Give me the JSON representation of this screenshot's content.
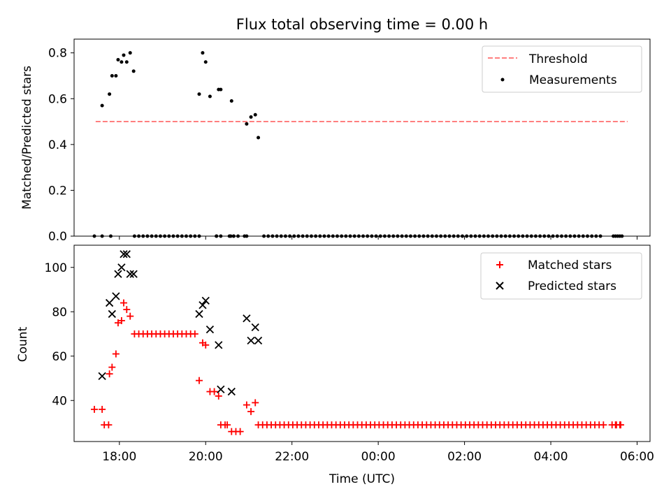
{
  "figure": {
    "title": "Flux total observing time = 0.00 h"
  },
  "chart_data": [
    {
      "type": "scatter",
      "ylabel": "Matched/Predicted stars",
      "ylim": [
        0,
        0.86
      ],
      "yticks": [
        0.0,
        0.2,
        0.4,
        0.6,
        0.8
      ],
      "ytick_labels": [
        "0.0",
        "0.2",
        "0.4",
        "0.6",
        "0.8"
      ],
      "xlim": [
        16.95,
        30.3
      ],
      "xticks": [
        18,
        20,
        22,
        24,
        26,
        28,
        30
      ],
      "threshold": {
        "name": "Threshold",
        "value": 0.5,
        "x": [
          17.45,
          29.78
        ],
        "color": "#ff7f7f"
      },
      "series": [
        {
          "name": "Measurements",
          "color": "#000000",
          "points": [
            [
              17.6,
              0.57
            ],
            [
              17.77,
              0.62
            ],
            [
              17.83,
              0.7
            ],
            [
              17.92,
              0.7
            ],
            [
              17.97,
              0.77
            ],
            [
              18.05,
              0.76
            ],
            [
              18.1,
              0.79
            ],
            [
              18.17,
              0.76
            ],
            [
              18.25,
              0.8
            ],
            [
              18.33,
              0.72
            ],
            [
              19.85,
              0.62
            ],
            [
              19.93,
              0.8
            ],
            [
              20.0,
              0.76
            ],
            [
              20.1,
              0.61
            ],
            [
              20.3,
              0.64
            ],
            [
              20.35,
              0.64
            ],
            [
              20.6,
              0.59
            ],
            [
              20.95,
              0.49
            ],
            [
              21.05,
              0.52
            ],
            [
              21.15,
              0.53
            ],
            [
              21.22,
              0.43
            ],
            [
              17.42,
              0
            ],
            [
              17.6,
              0
            ],
            [
              17.8,
              0
            ]
          ],
          "zero_run": {
            "start": 18.35,
            "end": 29.7,
            "step": 0.1,
            "skip": [
              [
                19.86,
                20.24
              ],
              [
                20.36,
                20.55
              ],
              [
                20.8,
                20.9
              ],
              [
                21.05,
                21.3
              ],
              [
                29.25,
                29.42
              ]
            ]
          },
          "zero_extra": [
            20.25,
            20.58,
            20.65,
            20.9,
            29.5,
            29.6
          ]
        }
      ],
      "legend": {
        "placement": "top-right",
        "entries": [
          "Threshold",
          "Measurements"
        ]
      }
    },
    {
      "type": "scatter",
      "xlabel": "Time (UTC)",
      "ylabel": "Count",
      "ylim": [
        21.5,
        110
      ],
      "yticks": [
        40,
        60,
        80,
        100
      ],
      "ytick_labels": [
        "40",
        "60",
        "80",
        "100"
      ],
      "xlim": [
        16.95,
        30.3
      ],
      "xticks": [
        18,
        20,
        22,
        24,
        26,
        28,
        30
      ],
      "xtick_labels": [
        "18:00",
        "20:00",
        "22:00",
        "00:00",
        "02:00",
        "04:00",
        "06:00"
      ],
      "series": [
        {
          "name": "Matched stars",
          "color": "#ff0000",
          "marker": "plus",
          "points": [
            [
              17.42,
              36
            ],
            [
              17.6,
              36
            ],
            [
              17.65,
              29
            ],
            [
              17.75,
              29
            ],
            [
              17.77,
              52
            ],
            [
              17.83,
              55
            ],
            [
              17.92,
              61
            ],
            [
              17.97,
              75
            ],
            [
              18.05,
              76
            ],
            [
              18.1,
              84
            ],
            [
              18.17,
              81
            ],
            [
              18.25,
              78
            ],
            [
              19.85,
              49
            ],
            [
              19.93,
              66
            ],
            [
              20.0,
              65
            ],
            [
              20.1,
              44
            ],
            [
              20.2,
              44
            ],
            [
              20.3,
              42
            ],
            [
              20.35,
              29
            ],
            [
              20.45,
              29
            ],
            [
              20.5,
              29
            ],
            [
              20.6,
              26
            ],
            [
              20.7,
              26
            ],
            [
              20.8,
              26
            ],
            [
              20.95,
              38
            ],
            [
              21.05,
              35
            ],
            [
              21.15,
              39
            ]
          ],
          "run": {
            "value": 70,
            "start": 18.35,
            "end": 19.75,
            "step": 0.1
          },
          "run2": {
            "value": 29,
            "start": 21.22,
            "end": 29.7,
            "step": 0.1,
            "skip": [
              [
                29.25,
                29.42
              ]
            ]
          },
          "extra29": [
            29.5,
            29.6
          ]
        },
        {
          "name": "Predicted stars",
          "color": "#000000",
          "marker": "x",
          "points": [
            [
              17.6,
              51
            ],
            [
              17.77,
              84
            ],
            [
              17.83,
              79
            ],
            [
              17.92,
              87
            ],
            [
              17.97,
              97
            ],
            [
              18.05,
              100
            ],
            [
              18.1,
              106
            ],
            [
              18.17,
              106
            ],
            [
              18.25,
              97
            ],
            [
              18.33,
              97
            ],
            [
              19.85,
              79
            ],
            [
              19.93,
              83
            ],
            [
              20.0,
              85
            ],
            [
              20.1,
              72
            ],
            [
              20.3,
              65
            ],
            [
              20.35,
              45
            ],
            [
              20.6,
              44
            ],
            [
              20.95,
              77
            ],
            [
              21.05,
              67
            ],
            [
              21.15,
              73
            ],
            [
              21.22,
              67
            ]
          ]
        }
      ],
      "legend": {
        "placement": "top-right",
        "entries": [
          "Matched stars",
          "Predicted stars"
        ]
      }
    }
  ]
}
